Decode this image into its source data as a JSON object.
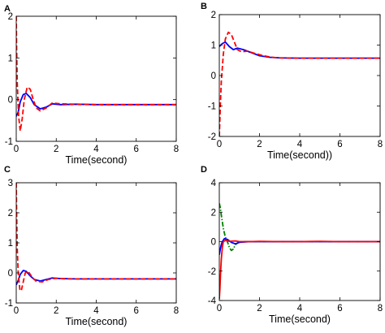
{
  "chart_data": [
    {
      "panel_label": "A",
      "type": "line",
      "xlabel": "Time(second)",
      "ylabel": "",
      "xlim": [
        0,
        8
      ],
      "ylim": [
        -1,
        2
      ],
      "xticks": [
        "0",
        "2",
        "4",
        "6",
        "8"
      ],
      "yticks": [
        "-1",
        "0",
        "1",
        "2"
      ],
      "grid": false,
      "series": [
        {
          "color": "#0000ff",
          "style": "solid",
          "x": [
            0,
            0.1,
            0.2,
            0.35,
            0.5,
            0.7,
            0.9,
            1.2,
            1.5,
            1.8,
            2.2,
            3,
            4,
            5,
            6,
            7,
            8
          ],
          "y": [
            -0.4,
            -0.3,
            -0.05,
            0.12,
            0.15,
            0.05,
            -0.12,
            -0.22,
            -0.18,
            -0.1,
            -0.12,
            -0.11,
            -0.12,
            -0.12,
            -0.12,
            -0.12,
            -0.12
          ]
        },
        {
          "color": "#ff0000",
          "style": "dashed",
          "x": [
            0,
            0.02,
            0.05,
            0.12,
            0.2,
            0.3,
            0.4,
            0.55,
            0.7,
            0.85,
            1.0,
            1.2,
            1.5,
            1.8,
            2.2,
            3,
            4,
            5,
            6,
            7,
            8
          ],
          "y": [
            2.0,
            1.2,
            0.4,
            -0.4,
            -0.75,
            -0.45,
            0.0,
            0.3,
            0.25,
            0.0,
            -0.2,
            -0.27,
            -0.2,
            -0.08,
            -0.1,
            -0.11,
            -0.12,
            -0.12,
            -0.12,
            -0.12,
            -0.12
          ]
        }
      ]
    },
    {
      "panel_label": "B",
      "type": "line",
      "xlabel": "Time(second))",
      "ylabel": "",
      "xlim": [
        0,
        8
      ],
      "ylim": [
        -2,
        2
      ],
      "xticks": [
        "0",
        "2",
        "4",
        "6",
        "8"
      ],
      "yticks": [
        "-2",
        "-1",
        "0",
        "1",
        "2"
      ],
      "grid": false,
      "series": [
        {
          "color": "#0000ff",
          "style": "solid",
          "x": [
            0,
            0.15,
            0.3,
            0.5,
            0.7,
            0.9,
            1.2,
            1.6,
            2.0,
            2.5,
            3,
            4,
            5,
            6,
            7,
            8
          ],
          "y": [
            0.95,
            1.05,
            1.1,
            0.95,
            0.85,
            0.9,
            0.85,
            0.75,
            0.65,
            0.6,
            0.58,
            0.57,
            0.57,
            0.57,
            0.57,
            0.57
          ]
        },
        {
          "color": "#ff0000",
          "style": "dashed",
          "x": [
            0,
            0.05,
            0.1,
            0.2,
            0.3,
            0.45,
            0.6,
            0.75,
            0.9,
            1.1,
            1.4,
            1.8,
            2.2,
            2.6,
            3,
            4,
            5,
            6,
            7,
            8
          ],
          "y": [
            -2.0,
            -1.0,
            -0.2,
            0.7,
            1.2,
            1.42,
            1.35,
            1.1,
            0.85,
            0.78,
            0.8,
            0.72,
            0.65,
            0.6,
            0.58,
            0.57,
            0.57,
            0.57,
            0.57,
            0.57
          ]
        }
      ]
    },
    {
      "panel_label": "C",
      "type": "line",
      "xlabel": "Time(second)",
      "ylabel": "",
      "xlim": [
        0,
        8
      ],
      "ylim": [
        -1,
        3
      ],
      "xticks": [
        "0",
        "2",
        "4",
        "6",
        "8"
      ],
      "yticks": [
        "-1",
        "0",
        "1",
        "2",
        "3"
      ],
      "grid": false,
      "series": [
        {
          "color": "#0000ff",
          "style": "solid",
          "x": [
            0,
            0.1,
            0.2,
            0.35,
            0.5,
            0.7,
            0.9,
            1.2,
            1.5,
            1.8,
            2.2,
            3,
            4,
            5,
            6,
            7,
            8
          ],
          "y": [
            -0.4,
            -0.25,
            -0.05,
            0.08,
            0.05,
            -0.1,
            -0.22,
            -0.27,
            -0.22,
            -0.17,
            -0.19,
            -0.2,
            -0.2,
            -0.2,
            -0.2,
            -0.2,
            -0.2
          ]
        },
        {
          "color": "#ff0000",
          "style": "dashed",
          "x": [
            0,
            0.02,
            0.05,
            0.1,
            0.18,
            0.25,
            0.35,
            0.45,
            0.6,
            0.8,
            1.0,
            1.3,
            1.6,
            2.0,
            2.5,
            3,
            4,
            5,
            6,
            7,
            8
          ],
          "y": [
            3.0,
            2.0,
            0.8,
            0.0,
            -0.55,
            -0.6,
            -0.3,
            0.0,
            0.05,
            -0.15,
            -0.28,
            -0.3,
            -0.22,
            -0.18,
            -0.2,
            -0.2,
            -0.2,
            -0.2,
            -0.2,
            -0.2,
            -0.2
          ]
        }
      ]
    },
    {
      "panel_label": "D",
      "type": "line",
      "xlabel": "Time(second)",
      "ylabel": "",
      "xlim": [
        0,
        8
      ],
      "ylim": [
        -4,
        4
      ],
      "xticks": [
        "0",
        "2",
        "4",
        "6",
        "8"
      ],
      "yticks": [
        "-4",
        "-2",
        "0",
        "2",
        "4"
      ],
      "grid": false,
      "series": [
        {
          "color": "#008000",
          "style": "dashdot",
          "x": [
            0,
            0.05,
            0.1,
            0.2,
            0.3,
            0.4,
            0.5,
            0.6,
            0.7,
            0.8,
            1.0,
            1.5,
            2,
            4,
            6,
            8
          ],
          "y": [
            2.6,
            2.3,
            1.8,
            0.9,
            0.3,
            0.0,
            -0.4,
            -0.6,
            -0.5,
            -0.2,
            0.0,
            0.0,
            0.0,
            0.0,
            0.0,
            0.0
          ]
        },
        {
          "color": "#0000ff",
          "style": "solid",
          "x": [
            0,
            0.05,
            0.1,
            0.15,
            0.25,
            0.4,
            0.6,
            0.8,
            1.0,
            1.5,
            2,
            4,
            6,
            8
          ],
          "y": [
            -0.9,
            -0.5,
            -0.2,
            0.0,
            0.2,
            0.15,
            -0.05,
            -0.15,
            -0.05,
            0.0,
            0.0,
            0.0,
            0.0,
            0.0
          ]
        },
        {
          "color": "#ff0000",
          "style": "solid",
          "x": [
            0,
            0.03,
            0.06,
            0.1,
            0.15,
            0.2,
            0.3,
            0.5,
            0.8,
            1.0,
            1.5,
            2,
            3,
            4,
            5,
            6,
            7,
            8
          ],
          "y": [
            -3.9,
            -3.2,
            -2.2,
            -1.2,
            -0.4,
            0.0,
            0.08,
            0.02,
            0.05,
            0.0,
            0.0,
            0.02,
            0.0,
            0.0,
            0.02,
            0.0,
            0.0,
            0.0
          ]
        }
      ]
    }
  ]
}
